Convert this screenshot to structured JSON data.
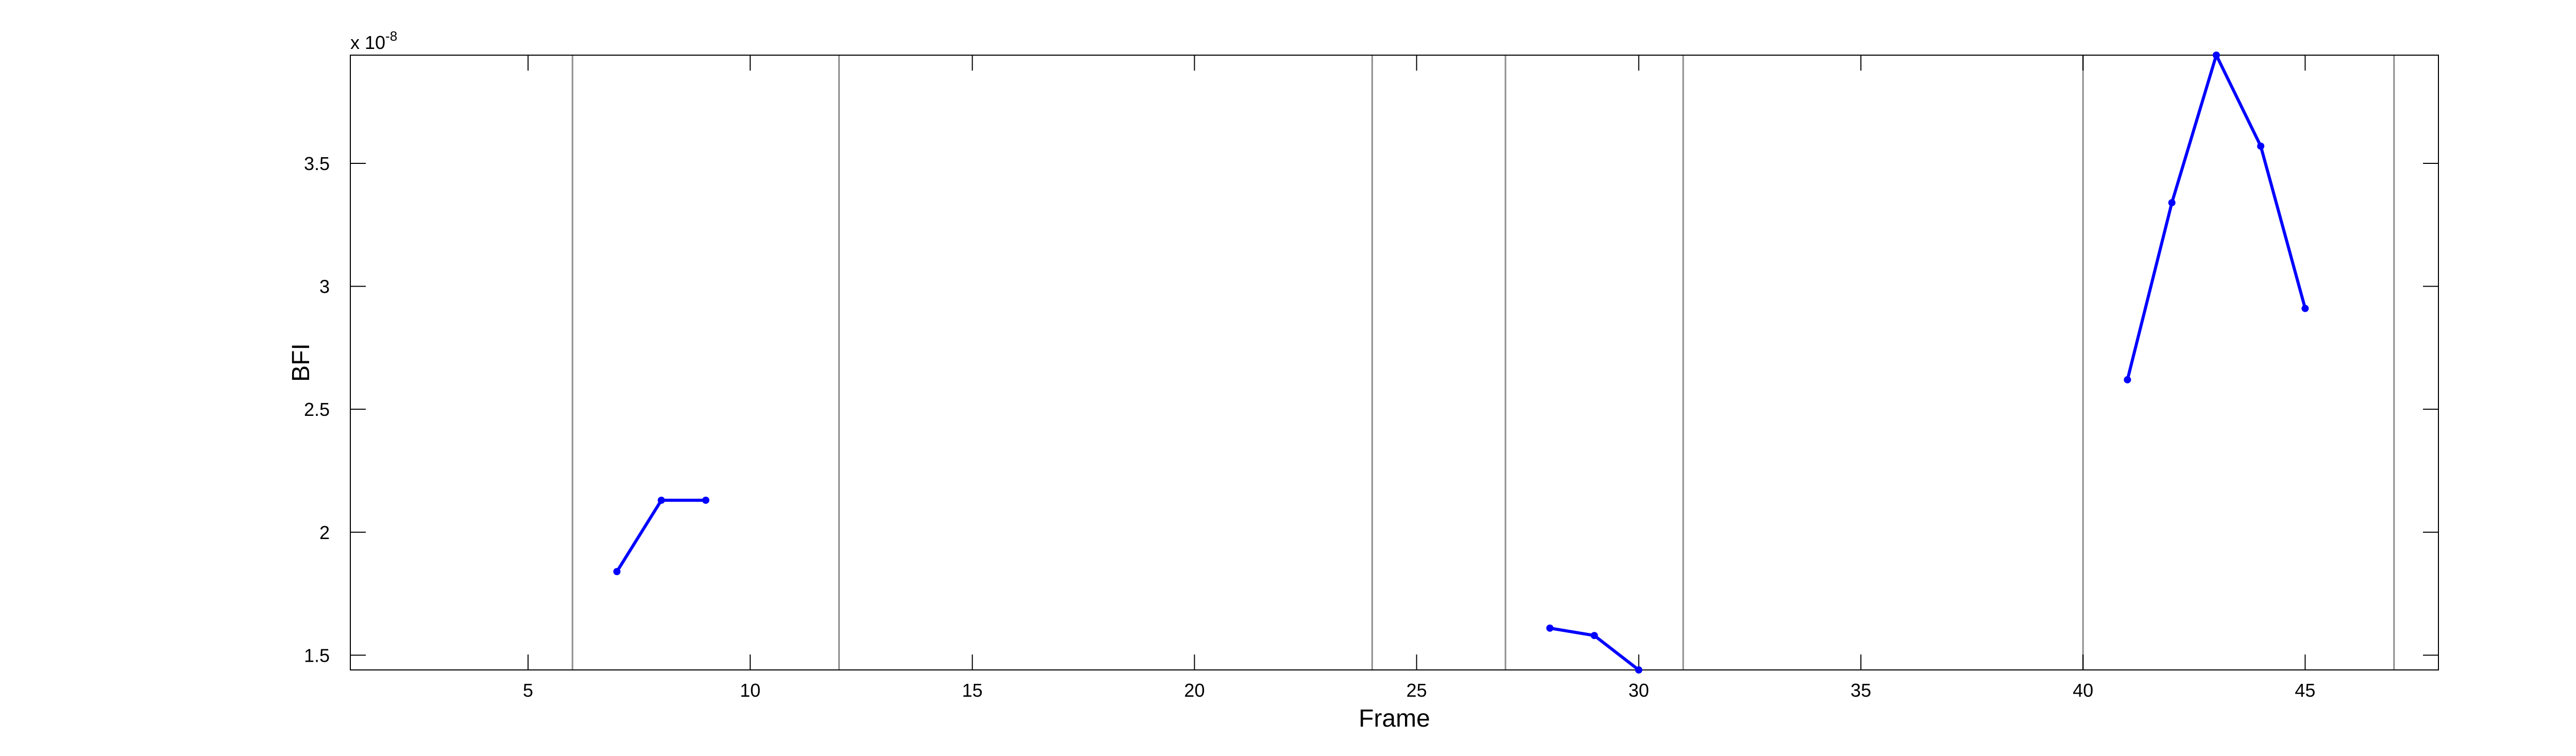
{
  "chart_data": {
    "type": "line",
    "title": "",
    "xlabel": "Frame",
    "ylabel": "BFI",
    "xlim": [
      1,
      48
    ],
    "ylim": [
      1.44,
      3.94
    ],
    "y_exponent_label": "x 10",
    "y_exponent_power": "-8",
    "x_ticks": [
      5,
      10,
      15,
      20,
      25,
      30,
      35,
      40,
      45
    ],
    "y_ticks": [
      1.5,
      2,
      2.5,
      3,
      3.5
    ],
    "x_tick_labels": [
      "5",
      "10",
      "15",
      "20",
      "25",
      "30",
      "35",
      "40",
      "45"
    ],
    "y_tick_labels": [
      "1.5",
      "2",
      "2.5",
      "3",
      "3.5"
    ],
    "vertical_lines": [
      6,
      12,
      24,
      27,
      31,
      40,
      47
    ],
    "grid": false,
    "line_color": "#0000ff",
    "segments": [
      {
        "x": [
          7,
          8,
          9
        ],
        "y": [
          1.84,
          2.13,
          2.13
        ]
      },
      {
        "x": [
          28,
          29,
          30
        ],
        "y": [
          1.61,
          1.58,
          1.44
        ]
      },
      {
        "x": [
          41,
          42,
          43,
          44,
          45
        ],
        "y": [
          2.62,
          3.34,
          3.94,
          3.57,
          2.91
        ]
      }
    ]
  }
}
